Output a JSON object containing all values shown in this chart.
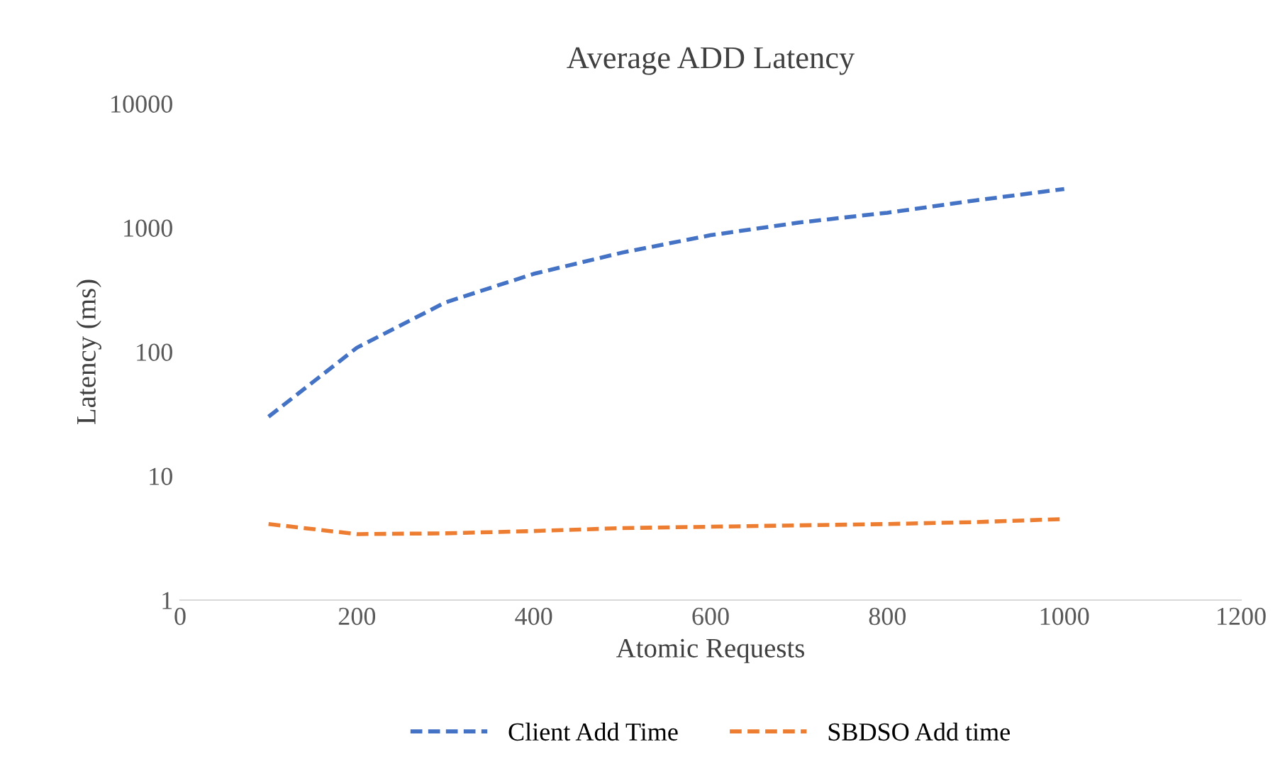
{
  "chart_data": {
    "type": "line",
    "title": "Average ADD Latency",
    "xlabel": "Atomic Requests",
    "ylabel": "Latency (ms)",
    "x": [
      100,
      200,
      300,
      400,
      500,
      600,
      700,
      800,
      900,
      1000
    ],
    "series": [
      {
        "name": "Client Add Time",
        "color": "#4472c4",
        "values": [
          30,
          108,
          250,
          425,
          630,
          870,
          1100,
          1320,
          1660,
          2050
        ]
      },
      {
        "name": "SBDSO Add time",
        "color": "#ed7d31",
        "values": [
          4.1,
          3.4,
          3.45,
          3.6,
          3.8,
          3.9,
          4.0,
          4.1,
          4.25,
          4.5
        ]
      }
    ],
    "log": "y",
    "xlim": [
      0,
      1200
    ],
    "xticks": [
      0,
      200,
      400,
      600,
      800,
      1000,
      1200
    ],
    "ylim": [
      1,
      10000
    ],
    "yticks": [
      1,
      10,
      100,
      1000,
      10000
    ],
    "grid": false,
    "legend": "bottom",
    "line_style": "dashed",
    "marker": "none"
  }
}
